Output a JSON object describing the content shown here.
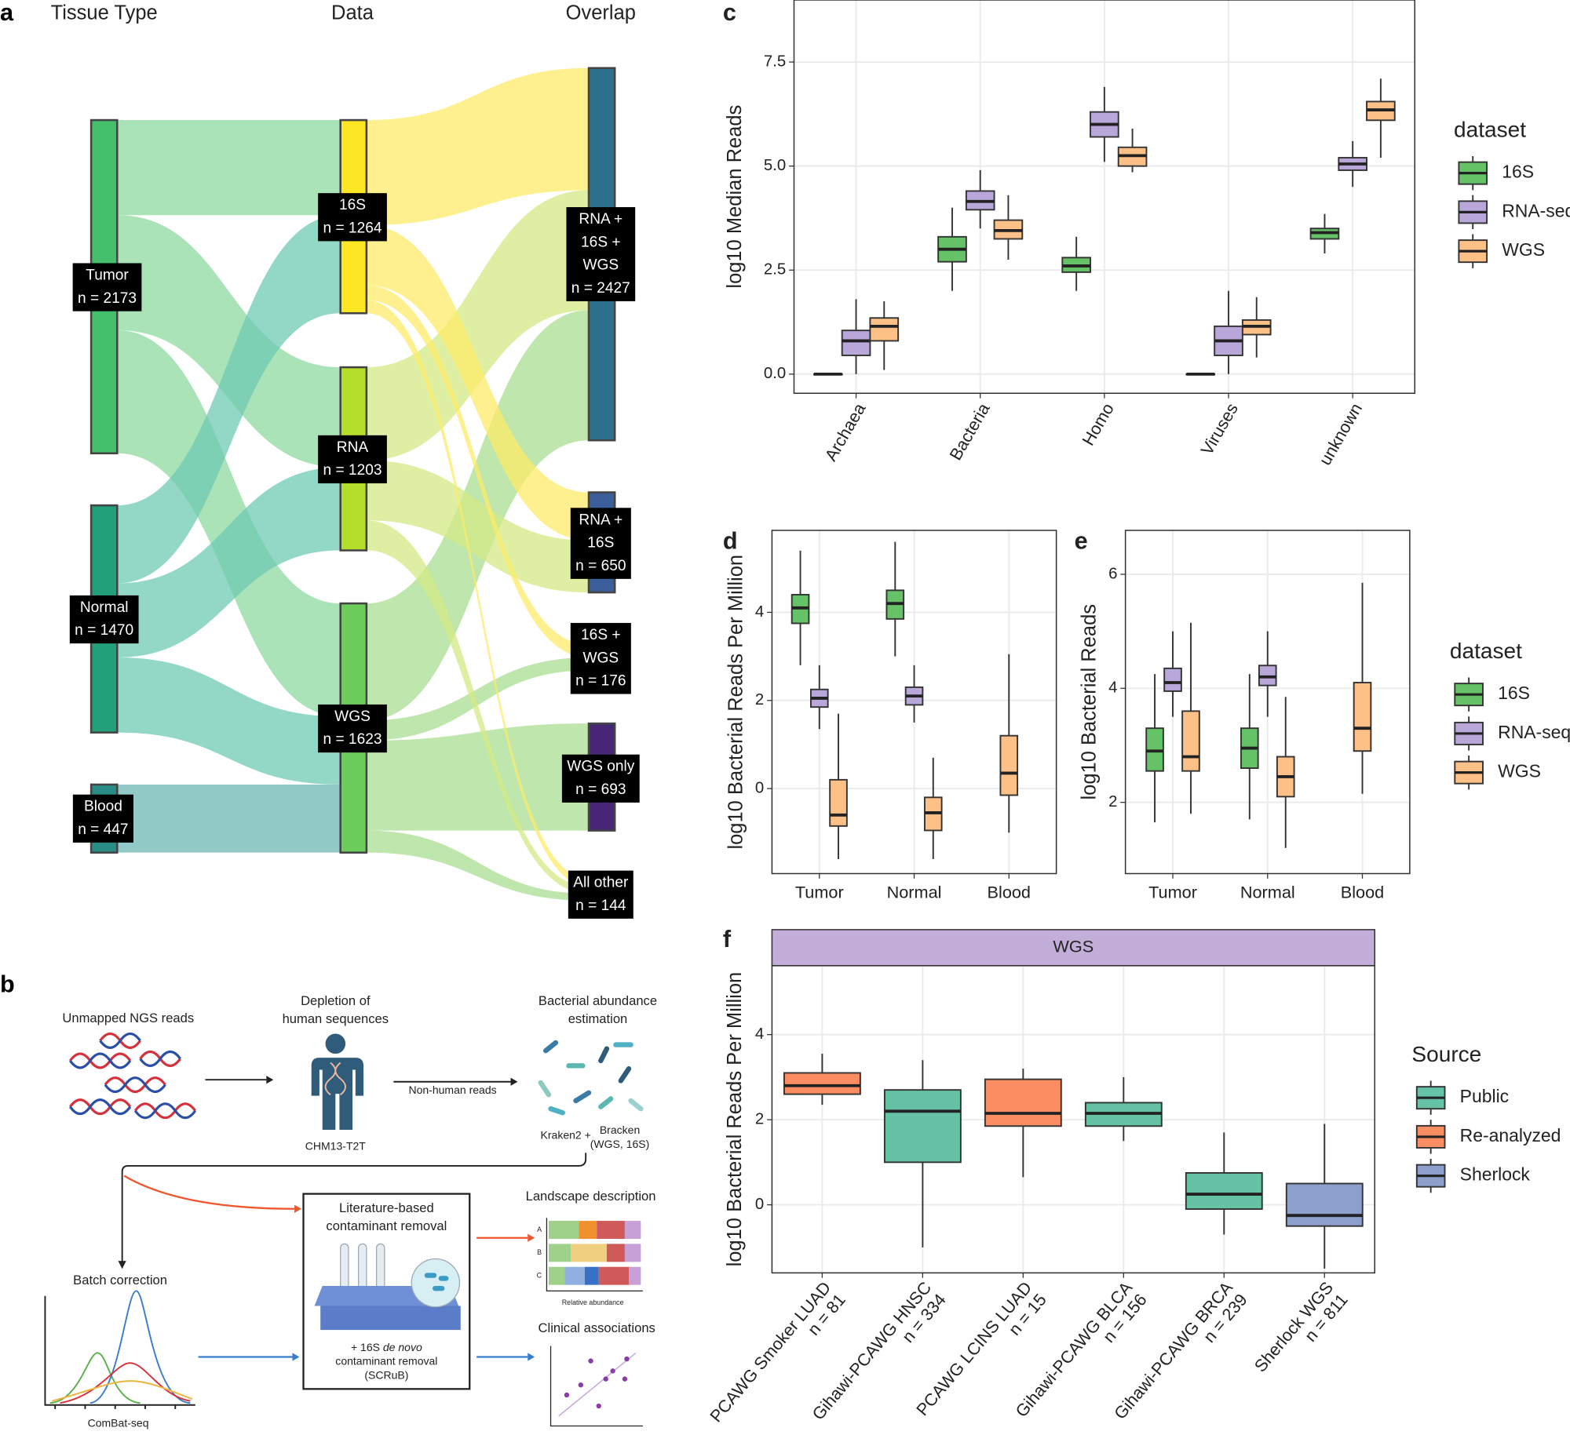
{
  "sankey": {
    "panel": "a",
    "columns": [
      "Tissue Type",
      "Data",
      "Overlap"
    ],
    "nodes": [
      {
        "lines": [
          "Tumor",
          "n = 2173"
        ],
        "color": "#44bf6c"
      },
      {
        "lines": [
          "Normal",
          "n = 1470"
        ],
        "color": "#22a07a"
      },
      {
        "lines": [
          "Blood",
          "n = 447"
        ],
        "color": "#2a8c86"
      },
      {
        "lines": [
          "16S",
          "n = 1264"
        ],
        "color": "#fde725"
      },
      {
        "lines": [
          "RNA",
          "n = 1203"
        ],
        "color": "#b5de2b"
      },
      {
        "lines": [
          "WGS",
          "n = 1623"
        ],
        "color": "#6ccd5a"
      },
      {
        "lines": [
          "RNA +",
          "16S +",
          "WGS",
          "n = 2427"
        ],
        "color": "#2d708e"
      },
      {
        "lines": [
          "RNA +",
          "16S",
          "n = 650"
        ],
        "color": "#3b5f9a"
      },
      {
        "lines": [
          "16S +",
          "WGS",
          "n = 176"
        ],
        "color": "#33638d"
      },
      {
        "lines": [
          "WGS only",
          "n = 693"
        ],
        "color": "#482677"
      },
      {
        "lines": [
          "All other",
          "n = 144"
        ],
        "color": "#2a788e"
      }
    ]
  },
  "workflow": {
    "panel": "b",
    "input": "Unmapped NGS reads",
    "depletion": [
      "Depletion of",
      "human sequences"
    ],
    "reference": "CHM13-T2T",
    "nonhuman": "Non-human reads",
    "estimation": [
      "Bacterial abundance",
      "estimation"
    ],
    "classifier": [
      "Kraken2 +",
      "Bracken",
      "(WGS, 16S)"
    ],
    "batch": "Batch correction",
    "combat": "ComBat-seq",
    "literature": [
      "Literature-based",
      "contaminant removal"
    ],
    "denovo": [
      "+ 16S ",
      "de novo",
      "contaminant removal",
      "(SCRuB)"
    ],
    "landscape": "Landscape description",
    "rows": [
      "A",
      "B",
      "C"
    ],
    "relative": "Relative abundance",
    "clinical": "Clinical associations"
  },
  "chart_data": [
    {
      "type": "box",
      "panel": "c",
      "y_label": "log10 Median Reads",
      "categories": [
        "Archaea",
        "Bacteria",
        "Homo",
        "Viruses",
        "unknown"
      ],
      "ylim": [
        -0.46,
        8.99
      ],
      "yticks": [
        {
          "value": 0,
          "label": "0.0"
        },
        {
          "value": 2.5,
          "label": "2.5"
        },
        {
          "value": 5,
          "label": "5.0"
        },
        {
          "value": 7.5,
          "label": "7.5"
        }
      ],
      "grid": true,
      "legend_title": "dataset",
      "legend": "right",
      "series": [
        {
          "name": "16S",
          "color": "#66c266",
          "values": [
            [
              0,
              0,
              0,
              0,
              0
            ],
            [
              2.0,
              2.7,
              3.0,
              3.3,
              4.0
            ],
            [
              2.0,
              2.45,
              2.6,
              2.8,
              3.3
            ],
            [
              0,
              0,
              0,
              0,
              0
            ],
            [
              2.9,
              3.25,
              3.4,
              3.5,
              3.85
            ]
          ]
        },
        {
          "name": "RNA-seq",
          "color": "#b9a7da",
          "values": [
            [
              0,
              0.45,
              0.8,
              1.05,
              1.8
            ],
            [
              3.5,
              3.95,
              4.15,
              4.4,
              4.9
            ],
            [
              5.1,
              5.7,
              6.0,
              6.3,
              6.9
            ],
            [
              0,
              0.45,
              0.8,
              1.15,
              2.0
            ],
            [
              4.5,
              4.9,
              5.05,
              5.2,
              5.6
            ]
          ]
        },
        {
          "name": "WGS",
          "color": "#fdc086",
          "values": [
            [
              0.1,
              0.8,
              1.15,
              1.35,
              1.75
            ],
            [
              2.75,
              3.25,
              3.45,
              3.7,
              4.3
            ],
            [
              4.85,
              5.0,
              5.25,
              5.45,
              5.9
            ],
            [
              0.4,
              0.95,
              1.15,
              1.3,
              1.85
            ],
            [
              5.2,
              6.1,
              6.35,
              6.55,
              7.1
            ]
          ]
        }
      ]
    },
    {
      "type": "box",
      "panel": "d",
      "y_label": "log10 Bacterial Reads Per Million",
      "categories": [
        "Tumor",
        "Normal",
        "Blood"
      ],
      "ylim": [
        -1.93,
        5.86
      ],
      "yticks": [
        0,
        2,
        4
      ],
      "grid": true,
      "series": [
        {
          "name": "16S",
          "color": "#66c266",
          "values": [
            [
              2.8,
              3.75,
              4.1,
              4.4,
              5.4
            ],
            [
              3.0,
              3.85,
              4.2,
              4.5,
              5.6
            ],
            null
          ]
        },
        {
          "name": "RNA-seq",
          "color": "#b9a7da",
          "values": [
            [
              1.35,
              1.85,
              2.05,
              2.25,
              2.8
            ],
            [
              1.5,
              1.9,
              2.1,
              2.3,
              2.8
            ],
            null
          ]
        },
        {
          "name": "WGS",
          "color": "#fdc086",
          "values": [
            [
              -1.6,
              -0.85,
              -0.6,
              0.2,
              1.7
            ],
            [
              -1.6,
              -0.95,
              -0.55,
              -0.2,
              0.7
            ],
            [
              -1.0,
              -0.15,
              0.35,
              1.2,
              3.05
            ]
          ]
        }
      ]
    },
    {
      "type": "box",
      "panel": "e",
      "y_label": "log10 Bacterial Reads",
      "categories": [
        "Tumor",
        "Normal",
        "Blood"
      ],
      "ylim": [
        0.75,
        6.77
      ],
      "yticks": [
        2,
        4,
        6
      ],
      "grid": true,
      "legend_title": "dataset",
      "legend": "right",
      "series": [
        {
          "name": "16S",
          "color": "#66c266",
          "values": [
            [
              1.65,
              2.55,
              2.9,
              3.3,
              4.25
            ],
            [
              1.7,
              2.6,
              2.95,
              3.3,
              4.25
            ],
            null
          ]
        },
        {
          "name": "RNA-seq",
          "color": "#b9a7da",
          "values": [
            [
              3.5,
              3.95,
              4.1,
              4.35,
              5.0
            ],
            [
              3.5,
              4.05,
              4.2,
              4.4,
              5.0
            ],
            null
          ]
        },
        {
          "name": "WGS",
          "color": "#fdc086",
          "values": [
            [
              1.8,
              2.55,
              2.8,
              3.6,
              5.15
            ],
            [
              1.2,
              2.1,
              2.45,
              2.8,
              3.85
            ],
            [
              2.15,
              2.9,
              3.3,
              4.1,
              5.85
            ]
          ]
        }
      ]
    },
    {
      "type": "box",
      "panel": "f",
      "strip": "WGS",
      "y_label": "log10 Bacterial Reads Per Million",
      "categories": [
        "PCAWG Smoker LUAD",
        "Gihawi-PCAWG HNSC",
        "PCAWG LCINS LUAD",
        "Gihawi-PCAWG BLCA",
        "Gihawi-PCAWG BRCA",
        "Sherlock WGS"
      ],
      "n_labels": [
        "n = 81",
        "n = 334",
        "n = 15",
        "n = 156",
        "n = 239",
        "n = 811"
      ],
      "ylim": [
        -1.6,
        5.62
      ],
      "yticks": [
        0,
        2,
        4
      ],
      "grid": true,
      "legend_title": "Source",
      "legend": "right",
      "series": [
        {
          "name": "Public",
          "color": "#66c2a5",
          "values": [
            null,
            [
              -1.0,
              1.0,
              2.2,
              2.7,
              3.4
            ],
            null,
            [
              1.5,
              1.85,
              2.15,
              2.4,
              3.0
            ],
            [
              -0.7,
              -0.1,
              0.25,
              0.75,
              1.7
            ],
            null
          ]
        },
        {
          "name": "Re-analyzed",
          "color": "#fc8d62",
          "values": [
            [
              2.35,
              2.6,
              2.8,
              3.1,
              3.55
            ],
            null,
            [
              0.65,
              1.85,
              2.15,
              2.95,
              3.2
            ],
            null,
            null,
            null
          ]
        },
        {
          "name": "Sherlock",
          "color": "#8da0cb",
          "values": [
            null,
            null,
            null,
            null,
            null,
            [
              -1.5,
              -0.5,
              -0.25,
              0.5,
              1.9
            ]
          ]
        }
      ]
    }
  ]
}
